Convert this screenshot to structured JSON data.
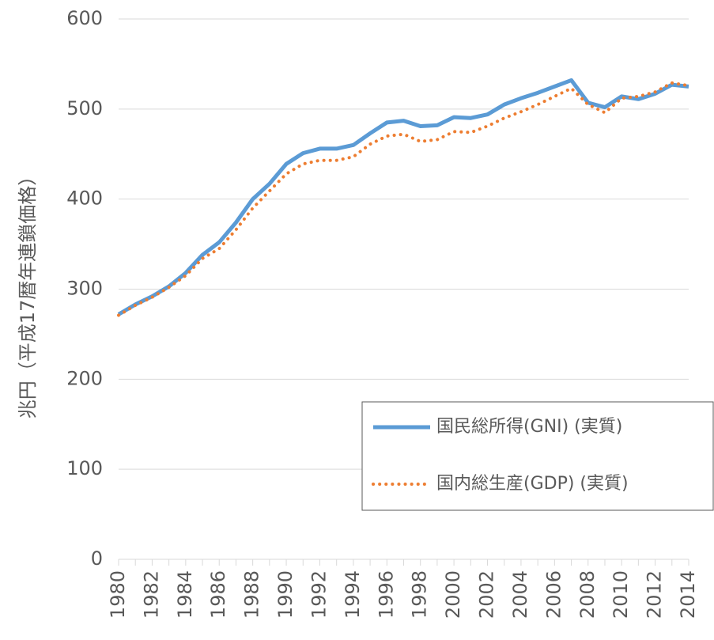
{
  "chart_data": {
    "type": "line",
    "y_label": "兆円（平成17暦年連鎖価格）",
    "categories": [
      "1980",
      null,
      "1982",
      null,
      "1984",
      null,
      "1986",
      null,
      "1988",
      null,
      "1990",
      null,
      "1992",
      null,
      "1994",
      null,
      "1996",
      null,
      "1998",
      null,
      "2000",
      null,
      "2002",
      null,
      "2004",
      null,
      "2006",
      null,
      "2008",
      null,
      "2010",
      null,
      "2012",
      null,
      "2014"
    ],
    "series": [
      {
        "name": "国民総所得(GNI) (実質)",
        "color": "#5b9bd5",
        "style": "solid",
        "values": [
          272,
          283,
          292,
          303,
          318,
          338,
          352,
          374,
          400,
          417,
          439,
          451,
          456,
          456,
          460,
          473,
          485,
          487,
          481,
          482,
          491,
          490,
          494,
          505,
          512,
          518,
          525,
          532,
          507,
          502,
          514,
          511,
          517,
          527,
          525
        ]
      },
      {
        "name": "国内総生産(GDP) (実質)",
        "color": "#ed7d31",
        "style": "dotted",
        "values": [
          271,
          282,
          291,
          302,
          315,
          334,
          345,
          366,
          390,
          409,
          428,
          439,
          443,
          443,
          447,
          461,
          470,
          472,
          464,
          466,
          475,
          474,
          481,
          490,
          497,
          505,
          514,
          523,
          505,
          496,
          512,
          514,
          519,
          529,
          526
        ]
      }
    ],
    "ylim": [
      0,
      600
    ],
    "yticks": [
      0,
      100,
      200,
      300,
      400,
      500,
      600
    ],
    "grid": true,
    "legend": "lower right"
  }
}
